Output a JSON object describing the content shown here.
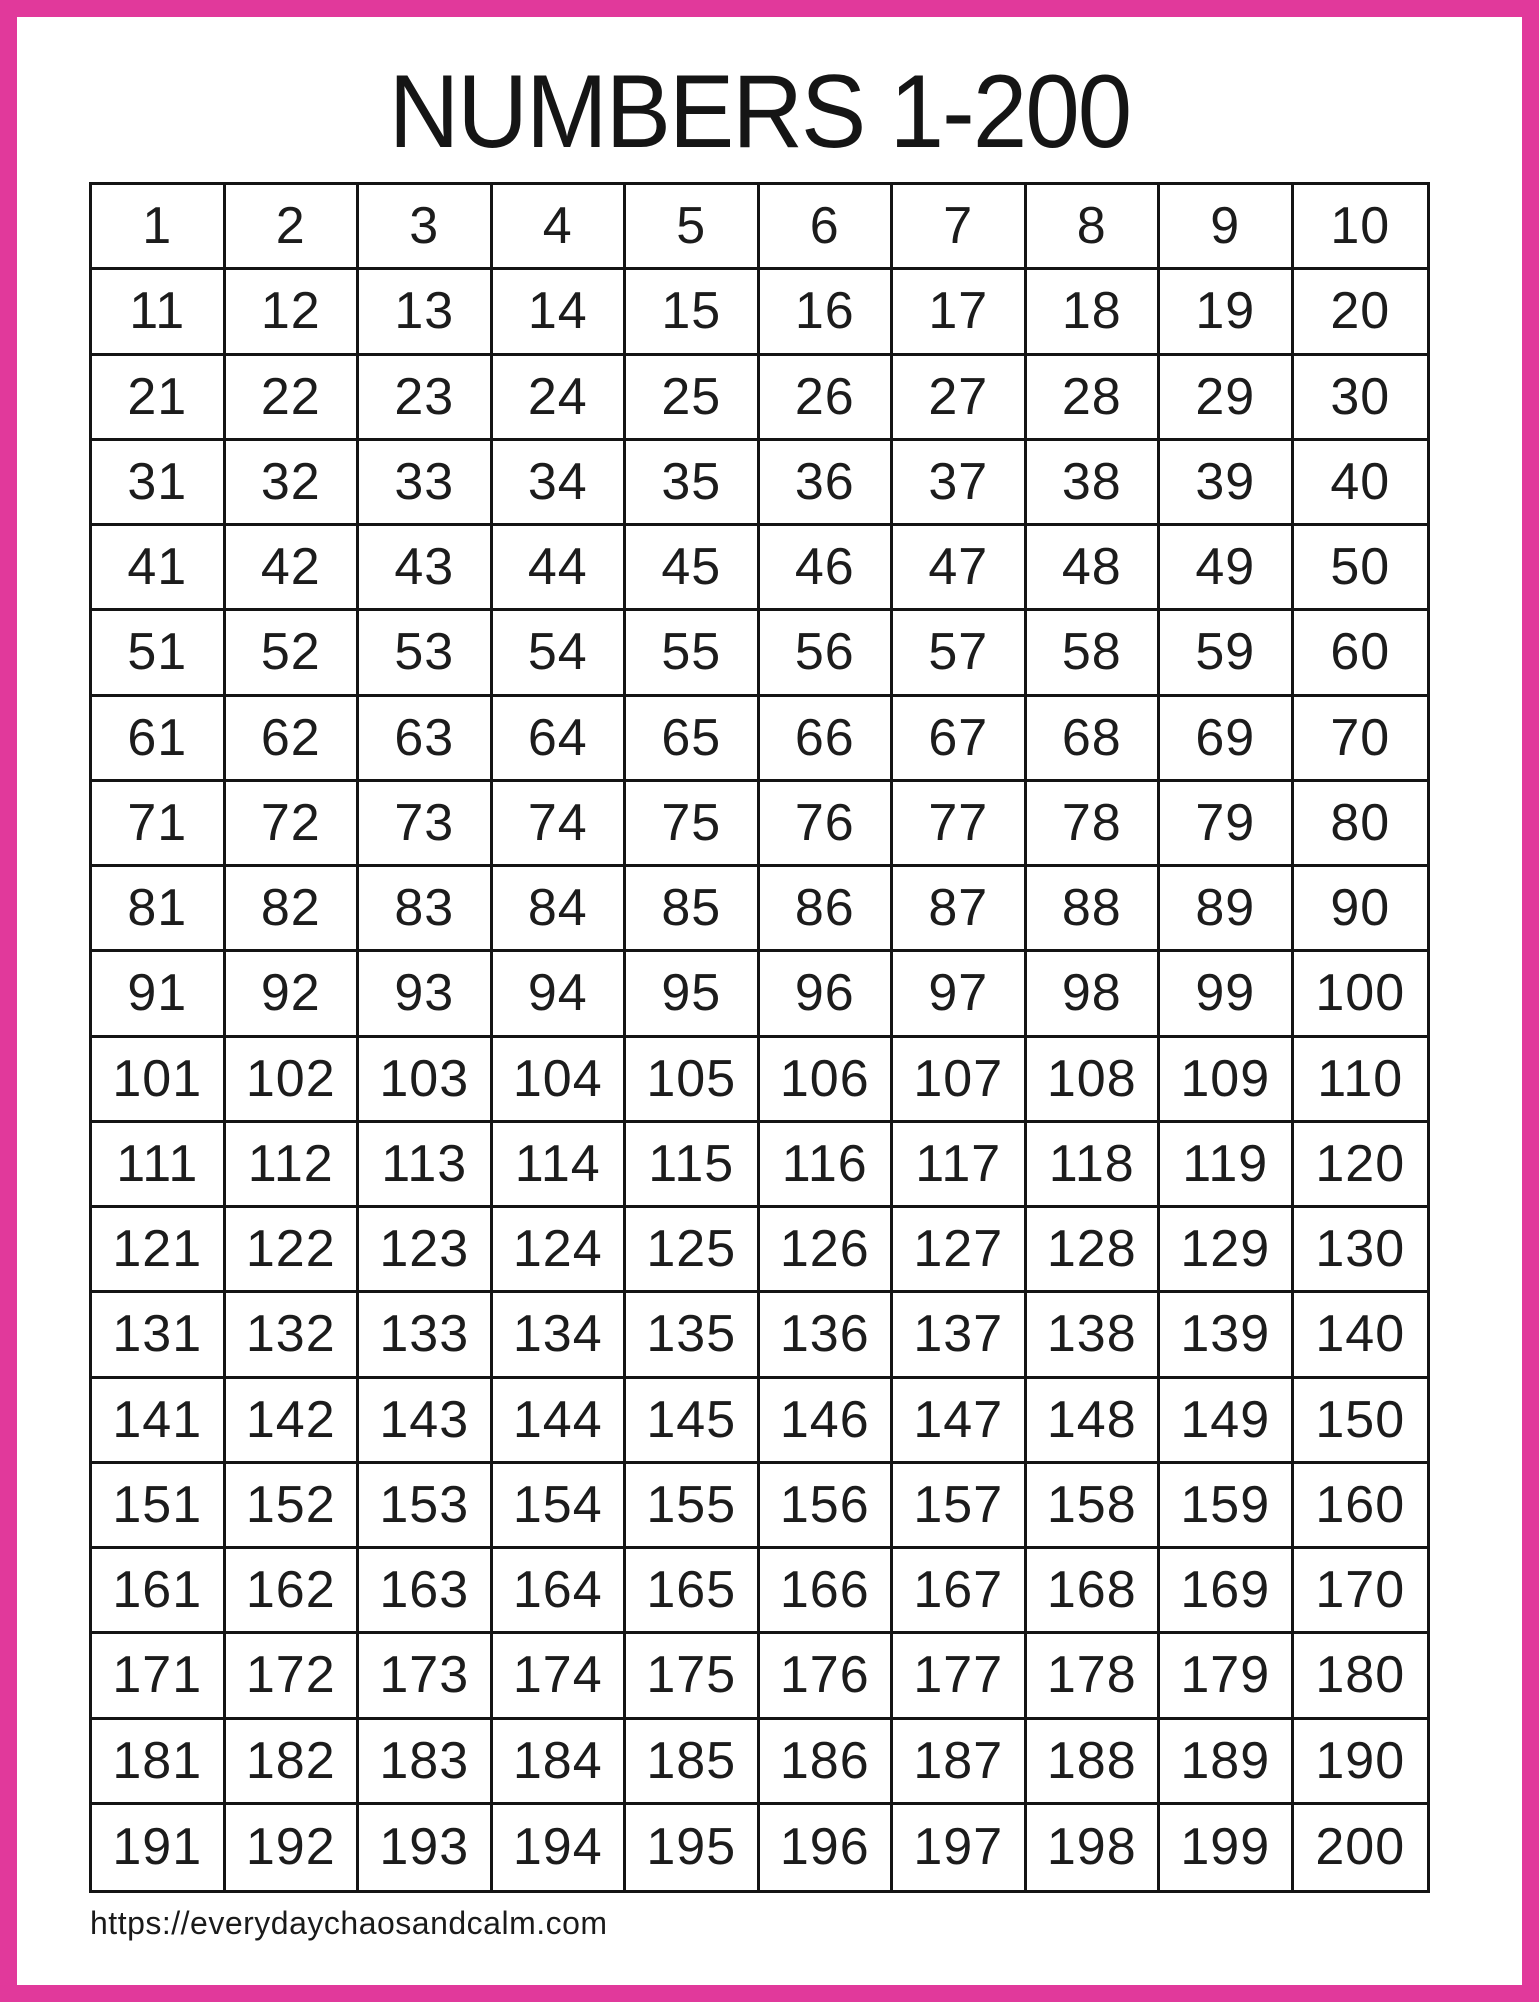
{
  "page": {
    "title": "NUMBERS 1-200",
    "footer_url": "https://everydaychaosandcalm.com",
    "colors": {
      "border_pink": "#e1399b",
      "grid_line_black": "#141414",
      "number_text": "#1c1c1c"
    }
  },
  "grid": {
    "columns": 10,
    "rows": 20,
    "first_number": 1,
    "last_number": 200,
    "numbers": [
      [
        1,
        2,
        3,
        4,
        5,
        6,
        7,
        8,
        9,
        10
      ],
      [
        11,
        12,
        13,
        14,
        15,
        16,
        17,
        18,
        19,
        20
      ],
      [
        21,
        22,
        23,
        24,
        25,
        26,
        27,
        28,
        29,
        30
      ],
      [
        31,
        32,
        33,
        34,
        35,
        36,
        37,
        38,
        39,
        40
      ],
      [
        41,
        42,
        43,
        44,
        45,
        46,
        47,
        48,
        49,
        50
      ],
      [
        51,
        52,
        53,
        54,
        55,
        56,
        57,
        58,
        59,
        60
      ],
      [
        61,
        62,
        63,
        64,
        65,
        66,
        67,
        68,
        69,
        70
      ],
      [
        71,
        72,
        73,
        74,
        75,
        76,
        77,
        78,
        79,
        80
      ],
      [
        81,
        82,
        83,
        84,
        85,
        86,
        87,
        88,
        89,
        90
      ],
      [
        91,
        92,
        93,
        94,
        95,
        96,
        97,
        98,
        99,
        100
      ],
      [
        101,
        102,
        103,
        104,
        105,
        106,
        107,
        108,
        109,
        110
      ],
      [
        111,
        112,
        113,
        114,
        115,
        116,
        117,
        118,
        119,
        120
      ],
      [
        121,
        122,
        123,
        124,
        125,
        126,
        127,
        128,
        129,
        130
      ],
      [
        131,
        132,
        133,
        134,
        135,
        136,
        137,
        138,
        139,
        140
      ],
      [
        141,
        142,
        143,
        144,
        145,
        146,
        147,
        148,
        149,
        150
      ],
      [
        151,
        152,
        153,
        154,
        155,
        156,
        157,
        158,
        159,
        160
      ],
      [
        161,
        162,
        163,
        164,
        165,
        166,
        167,
        168,
        169,
        170
      ],
      [
        171,
        172,
        173,
        174,
        175,
        176,
        177,
        178,
        179,
        180
      ],
      [
        181,
        182,
        183,
        184,
        185,
        186,
        187,
        188,
        189,
        190
      ],
      [
        191,
        192,
        193,
        194,
        195,
        196,
        197,
        198,
        199,
        200
      ]
    ]
  }
}
